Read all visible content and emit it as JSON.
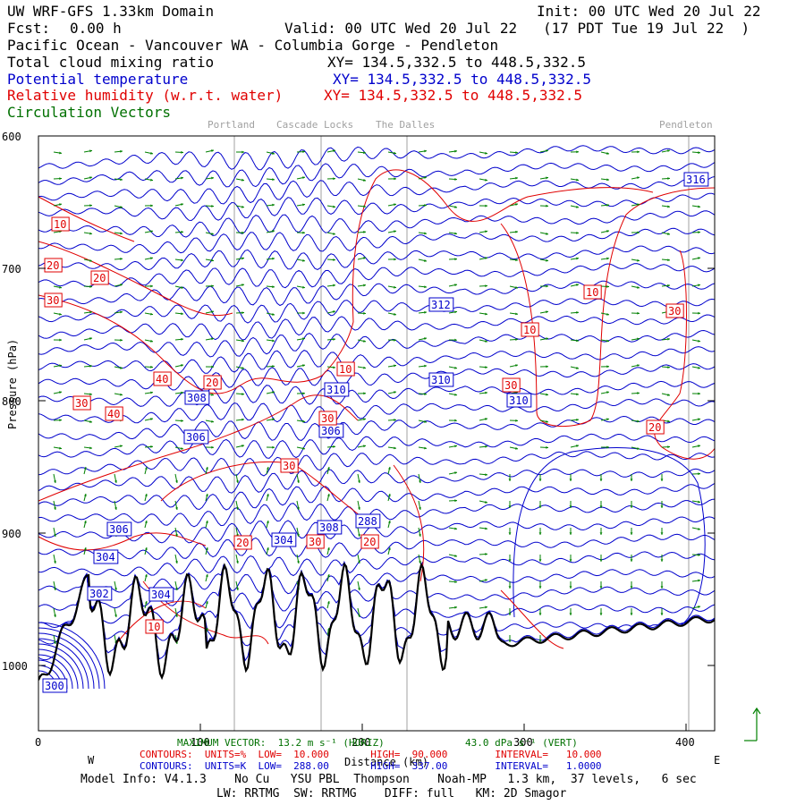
{
  "header": {
    "title": "UW WRF-GFS 1.33km Domain",
    "init": "Init: 00 UTC Wed 20 Jul 22",
    "fcst_label": "Fcst:",
    "fcst_value": "0.00 h",
    "valid": "Valid: 00 UTC Wed 20 Jul 22   (17 PDT Tue 19 Jul 22  )",
    "region": "Pacific Ocean - Vancouver WA - Columbia Gorge - Pendleton",
    "field1": "Total cloud mixing ratio",
    "field1_xy": "XY= 134.5,332.5 to 448.5,332.5",
    "field2": "Potential temperature",
    "field2_xy": "XY= 134.5,332.5 to 448.5,332.5",
    "field3": "Relative humidity (w.r.t. water)",
    "field3_xy": "XY= 134.5,332.5 to 448.5,332.5",
    "field4": "Circulation Vectors"
  },
  "locations": [
    "Portland",
    "Cascade Locks",
    "The Dalles",
    "Pendleton"
  ],
  "colors": {
    "theta": "#0000cc",
    "rh": "#e00000",
    "vectors": "#008000",
    "terrain": "#000000",
    "marker": "#a0a0a0"
  },
  "chart_data": {
    "type": "cross-section",
    "xlabel": "Distance (km)",
    "ylabel": "Pressure (hPa)",
    "x_ticks": [
      "0",
      "100",
      "200",
      "300",
      "400"
    ],
    "y_ticks": [
      "600",
      "700",
      "800",
      "900",
      "1000"
    ],
    "x_range": [
      0,
      420
    ],
    "y_range": [
      600,
      1045
    ],
    "direction_left": "W",
    "direction_right": "E",
    "theta_labels": [
      "316",
      "312",
      "310",
      "310",
      "310",
      "308",
      "308",
      "306",
      "306",
      "306",
      "304",
      "304",
      "304",
      "302",
      "300",
      "288"
    ],
    "rh_labels": [
      "10",
      "20",
      "30",
      "20",
      "10",
      "10",
      "10",
      "20",
      "30",
      "30",
      "30",
      "40",
      "40",
      "30",
      "20",
      "20",
      "30",
      "30",
      "20",
      "10"
    ],
    "max_vector": "MAXIMUM VECTOR:  13.2 m s⁻¹ (HORIZ)",
    "max_vector_vert": "43.0 dPa s⁻¹ (VERT)"
  },
  "footer": {
    "rh_line": "CONTOURS:  UNITS=%  LOW=  10.000       HIGH=  90.000        INTERVAL=   10.000",
    "theta_line": "CONTOURS:  UNITS=K  LOW=  288.00       HIGH=  337.00        INTERVAL=   1.0000",
    "model_info": "Model Info: V4.1.3    No Cu   YSU PBL  Thompson    Noah-MP   1.3 km,  37 levels,   6 sec",
    "model_info2": "LW: RRTMG  SW: RRTMG    DIFF: full   KM: 2D Smagor"
  }
}
